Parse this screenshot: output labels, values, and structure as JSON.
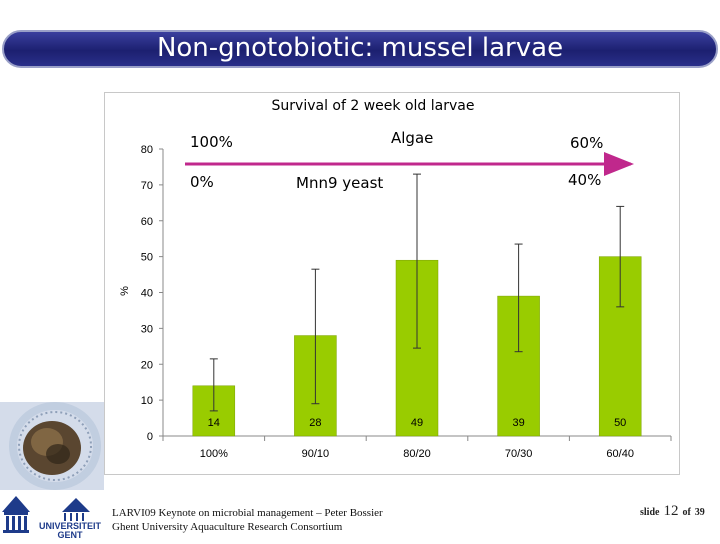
{
  "slide_title": "Non-gnotobiotic: mussel larvae",
  "footer": {
    "line1": "LARVI09 Keynote on microbial management  – Peter Bossier",
    "line2": "Ghent University Aquaculture Research Consortium"
  },
  "slide_number": {
    "prefix": "slide",
    "current": "12",
    "sep": "of",
    "total": "39"
  },
  "logo_text": {
    "line1": "UNIVERSITEIT",
    "line2": "GENT"
  },
  "colors": {
    "bar": "#99cc00",
    "arrow": "#c0288c",
    "title_bar": "#1c2070"
  },
  "annotations": {
    "left_top": "100%",
    "left_bottom": "0%",
    "algae": "Algae",
    "yeast": "Mnn9 yeast",
    "right_top": "60%",
    "right_bottom": "40%"
  },
  "chart_data": {
    "type": "bar",
    "title": "Survival of 2 week old larvae",
    "xlabel": "",
    "ylabel": "%",
    "ylim": [
      0,
      80
    ],
    "yticks": [
      "0",
      "10",
      "20",
      "30",
      "40",
      "50",
      "60",
      "70",
      "80"
    ],
    "grid": false,
    "categories": [
      "100%",
      "90/10",
      "80/20",
      "70/30",
      "60/40"
    ],
    "values": [
      14,
      28,
      49,
      39,
      50
    ],
    "value_labels": [
      "14",
      "28",
      "49",
      "39",
      "50"
    ],
    "error_low": [
      7,
      9,
      24.5,
      23.5,
      36
    ],
    "error_high": [
      21.5,
      46.5,
      73,
      53.5,
      64
    ]
  }
}
